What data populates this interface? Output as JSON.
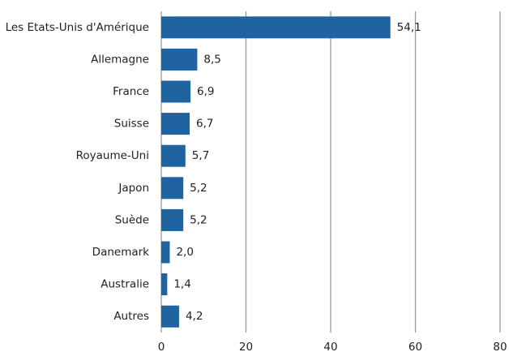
{
  "chart_data": {
    "type": "hbar",
    "categories": [
      "Les Etats-Unis d'Amérique",
      "Allemagne",
      "France",
      "Suisse",
      "Royaume-Uni",
      "Japon",
      "Suède",
      "Danemark",
      "Australie",
      "Autres"
    ],
    "values": [
      54.1,
      8.5,
      6.9,
      6.7,
      5.7,
      5.2,
      5.2,
      2.0,
      1.4,
      4.2
    ],
    "value_labels": [
      "54,1",
      "8,5",
      "6,9",
      "6,7",
      "5,7",
      "5,2",
      "5,2",
      "2,0",
      "1,4",
      "4,2"
    ],
    "color": "#1f64a0",
    "xlim": [
      0,
      80
    ],
    "xticks": [
      0,
      20,
      40,
      60,
      80
    ],
    "grid": true
  }
}
